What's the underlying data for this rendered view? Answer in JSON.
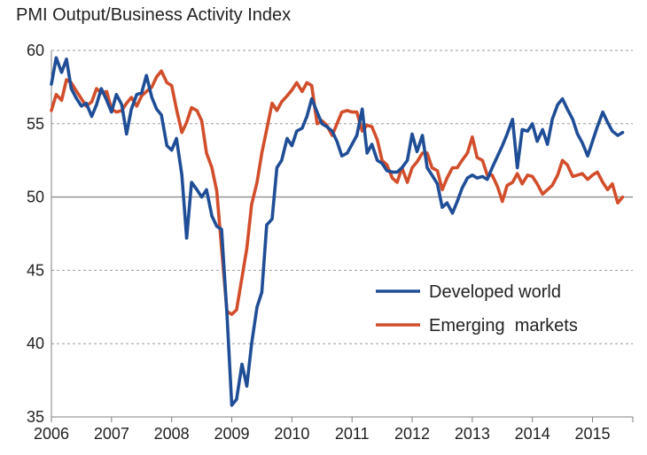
{
  "chart_data": {
    "type": "line",
    "title": "PMI Output/Business Activity Index",
    "xlabel": "",
    "ylabel": "",
    "ylim": [
      35,
      60
    ],
    "xlim": [
      2006,
      2015.67
    ],
    "yticks": [
      35,
      40,
      45,
      50,
      55,
      60
    ],
    "xticks": [
      "2006",
      "2007",
      "2008",
      "2009",
      "2010",
      "2011",
      "2012",
      "2013",
      "2014",
      "2015"
    ],
    "reference_line": 50,
    "grid": "horizontal dashed",
    "legend_position": "lower-right",
    "series": [
      {
        "name": "Developed world",
        "color": "#1f4e96",
        "points": [
          [
            2006.0,
            57.7
          ],
          [
            2006.08,
            59.5
          ],
          [
            2006.17,
            58.5
          ],
          [
            2006.25,
            59.4
          ],
          [
            2006.33,
            57.4
          ],
          [
            2006.42,
            56.7
          ],
          [
            2006.5,
            56.2
          ],
          [
            2006.58,
            56.4
          ],
          [
            2006.67,
            55.5
          ],
          [
            2006.75,
            56.3
          ],
          [
            2006.83,
            57.4
          ],
          [
            2006.92,
            56.6
          ],
          [
            2007.0,
            55.8
          ],
          [
            2007.08,
            57.0
          ],
          [
            2007.17,
            56.3
          ],
          [
            2007.25,
            54.3
          ],
          [
            2007.33,
            56.0
          ],
          [
            2007.42,
            57.0
          ],
          [
            2007.5,
            57.1
          ],
          [
            2007.58,
            58.3
          ],
          [
            2007.67,
            56.8
          ],
          [
            2007.75,
            56.0
          ],
          [
            2007.83,
            55.6
          ],
          [
            2007.92,
            53.5
          ],
          [
            2008.0,
            53.2
          ],
          [
            2008.08,
            54.0
          ],
          [
            2008.17,
            51.5
          ],
          [
            2008.25,
            47.2
          ],
          [
            2008.33,
            51.0
          ],
          [
            2008.42,
            50.5
          ],
          [
            2008.5,
            50.0
          ],
          [
            2008.58,
            50.5
          ],
          [
            2008.67,
            48.7
          ],
          [
            2008.75,
            48.0
          ],
          [
            2008.83,
            47.8
          ],
          [
            2008.92,
            42.0
          ],
          [
            2009.0,
            35.8
          ],
          [
            2009.08,
            36.2
          ],
          [
            2009.17,
            38.6
          ],
          [
            2009.25,
            37.1
          ],
          [
            2009.33,
            40.0
          ],
          [
            2009.42,
            42.5
          ],
          [
            2009.5,
            43.5
          ],
          [
            2009.58,
            48.1
          ],
          [
            2009.67,
            48.5
          ],
          [
            2009.75,
            52.0
          ],
          [
            2009.83,
            52.5
          ],
          [
            2009.92,
            54.0
          ],
          [
            2010.0,
            53.5
          ],
          [
            2010.08,
            54.5
          ],
          [
            2010.17,
            54.7
          ],
          [
            2010.25,
            55.5
          ],
          [
            2010.33,
            56.7
          ],
          [
            2010.42,
            55.8
          ],
          [
            2010.5,
            55.0
          ],
          [
            2010.58,
            54.8
          ],
          [
            2010.67,
            54.5
          ],
          [
            2010.75,
            53.8
          ],
          [
            2010.83,
            52.8
          ],
          [
            2010.92,
            53.0
          ],
          [
            2011.0,
            53.6
          ],
          [
            2011.08,
            54.2
          ],
          [
            2011.17,
            56.0
          ],
          [
            2011.25,
            53.0
          ],
          [
            2011.33,
            53.6
          ],
          [
            2011.42,
            52.5
          ],
          [
            2011.5,
            52.3
          ],
          [
            2011.58,
            51.8
          ],
          [
            2011.67,
            51.7
          ],
          [
            2011.75,
            51.7
          ],
          [
            2011.83,
            52.0
          ],
          [
            2011.92,
            52.5
          ],
          [
            2012.0,
            54.3
          ],
          [
            2012.08,
            53.1
          ],
          [
            2012.17,
            54.2
          ],
          [
            2012.25,
            52.0
          ],
          [
            2012.33,
            51.5
          ],
          [
            2012.42,
            50.9
          ],
          [
            2012.5,
            49.3
          ],
          [
            2012.58,
            49.6
          ],
          [
            2012.67,
            48.9
          ],
          [
            2012.75,
            49.7
          ],
          [
            2012.83,
            50.6
          ],
          [
            2012.92,
            51.3
          ],
          [
            2013.0,
            51.5
          ],
          [
            2013.08,
            51.3
          ],
          [
            2013.17,
            51.4
          ],
          [
            2013.25,
            51.2
          ],
          [
            2013.33,
            52.0
          ],
          [
            2013.42,
            52.8
          ],
          [
            2013.5,
            53.5
          ],
          [
            2013.58,
            54.3
          ],
          [
            2013.67,
            55.3
          ],
          [
            2013.75,
            52.0
          ],
          [
            2013.83,
            54.6
          ],
          [
            2013.92,
            54.5
          ],
          [
            2014.0,
            55.0
          ],
          [
            2014.08,
            53.8
          ],
          [
            2014.17,
            54.6
          ],
          [
            2014.25,
            53.6
          ],
          [
            2014.33,
            55.3
          ],
          [
            2014.42,
            56.3
          ],
          [
            2014.5,
            56.7
          ],
          [
            2014.58,
            56.0
          ],
          [
            2014.67,
            55.3
          ],
          [
            2014.75,
            54.3
          ],
          [
            2014.83,
            53.7
          ],
          [
            2014.92,
            52.8
          ],
          [
            2015.0,
            53.8
          ],
          [
            2015.08,
            54.8
          ],
          [
            2015.17,
            55.8
          ],
          [
            2015.25,
            55.1
          ],
          [
            2015.33,
            54.5
          ],
          [
            2015.42,
            54.2
          ],
          [
            2015.5,
            54.4
          ]
        ]
      },
      {
        "name": "Emerging  markets",
        "color": "#d24e2b",
        "points": [
          [
            2006.0,
            55.9
          ],
          [
            2006.08,
            57.0
          ],
          [
            2006.17,
            56.6
          ],
          [
            2006.25,
            58.0
          ],
          [
            2006.33,
            57.8
          ],
          [
            2006.42,
            57.2
          ],
          [
            2006.5,
            56.7
          ],
          [
            2006.58,
            56.2
          ],
          [
            2006.67,
            56.5
          ],
          [
            2006.75,
            57.4
          ],
          [
            2006.83,
            57.1
          ],
          [
            2006.92,
            57.2
          ],
          [
            2007.0,
            56.0
          ],
          [
            2007.08,
            55.8
          ],
          [
            2007.17,
            55.9
          ],
          [
            2007.25,
            56.4
          ],
          [
            2007.33,
            56.8
          ],
          [
            2007.42,
            56.2
          ],
          [
            2007.5,
            56.9
          ],
          [
            2007.58,
            57.2
          ],
          [
            2007.67,
            57.5
          ],
          [
            2007.75,
            58.2
          ],
          [
            2007.83,
            58.6
          ],
          [
            2007.92,
            57.8
          ],
          [
            2008.0,
            57.6
          ],
          [
            2008.08,
            56.0
          ],
          [
            2008.17,
            54.4
          ],
          [
            2008.25,
            55.1
          ],
          [
            2008.33,
            56.1
          ],
          [
            2008.42,
            55.9
          ],
          [
            2008.5,
            55.2
          ],
          [
            2008.58,
            53.0
          ],
          [
            2008.67,
            52.0
          ],
          [
            2008.75,
            50.4
          ],
          [
            2008.83,
            46.5
          ],
          [
            2008.92,
            42.2
          ],
          [
            2009.0,
            42.0
          ],
          [
            2009.08,
            42.3
          ],
          [
            2009.17,
            44.5
          ],
          [
            2009.25,
            46.5
          ],
          [
            2009.33,
            49.5
          ],
          [
            2009.42,
            51.0
          ],
          [
            2009.5,
            53.0
          ],
          [
            2009.58,
            54.6
          ],
          [
            2009.67,
            56.4
          ],
          [
            2009.75,
            55.9
          ],
          [
            2009.83,
            56.5
          ],
          [
            2009.92,
            56.9
          ],
          [
            2010.0,
            57.3
          ],
          [
            2010.08,
            57.8
          ],
          [
            2010.17,
            57.2
          ],
          [
            2010.25,
            57.8
          ],
          [
            2010.33,
            57.6
          ],
          [
            2010.42,
            55.0
          ],
          [
            2010.5,
            55.2
          ],
          [
            2010.58,
            54.9
          ],
          [
            2010.67,
            54.2
          ],
          [
            2010.75,
            55.0
          ],
          [
            2010.83,
            55.8
          ],
          [
            2010.92,
            55.9
          ],
          [
            2011.0,
            55.8
          ],
          [
            2011.08,
            55.8
          ],
          [
            2011.17,
            54.5
          ],
          [
            2011.25,
            54.9
          ],
          [
            2011.33,
            54.8
          ],
          [
            2011.42,
            53.9
          ],
          [
            2011.5,
            52.5
          ],
          [
            2011.58,
            52.2
          ],
          [
            2011.67,
            51.3
          ],
          [
            2011.75,
            51.0
          ],
          [
            2011.83,
            52.0
          ],
          [
            2011.92,
            51.0
          ],
          [
            2012.0,
            52.0
          ],
          [
            2012.08,
            52.4
          ],
          [
            2012.17,
            53.0
          ],
          [
            2012.25,
            53.0
          ],
          [
            2012.33,
            52.0
          ],
          [
            2012.42,
            51.8
          ],
          [
            2012.5,
            50.5
          ],
          [
            2012.58,
            51.3
          ],
          [
            2012.67,
            52.0
          ],
          [
            2012.75,
            52.0
          ],
          [
            2012.83,
            52.5
          ],
          [
            2012.92,
            53.0
          ],
          [
            2013.0,
            54.1
          ],
          [
            2013.08,
            52.7
          ],
          [
            2013.17,
            52.5
          ],
          [
            2013.25,
            51.5
          ],
          [
            2013.33,
            51.5
          ],
          [
            2013.42,
            50.7
          ],
          [
            2013.5,
            49.7
          ],
          [
            2013.58,
            50.8
          ],
          [
            2013.67,
            51.0
          ],
          [
            2013.75,
            51.6
          ],
          [
            2013.83,
            50.9
          ],
          [
            2013.92,
            51.5
          ],
          [
            2014.0,
            51.4
          ],
          [
            2014.08,
            50.9
          ],
          [
            2014.17,
            50.2
          ],
          [
            2014.25,
            50.5
          ],
          [
            2014.33,
            50.8
          ],
          [
            2014.42,
            51.5
          ],
          [
            2014.5,
            52.5
          ],
          [
            2014.58,
            52.2
          ],
          [
            2014.67,
            51.4
          ],
          [
            2014.75,
            51.5
          ],
          [
            2014.83,
            51.6
          ],
          [
            2014.92,
            51.2
          ],
          [
            2015.0,
            51.5
          ],
          [
            2015.08,
            51.7
          ],
          [
            2015.17,
            51.0
          ],
          [
            2015.25,
            50.5
          ],
          [
            2015.33,
            50.9
          ],
          [
            2015.42,
            49.6
          ],
          [
            2015.5,
            50.0
          ]
        ]
      }
    ]
  }
}
